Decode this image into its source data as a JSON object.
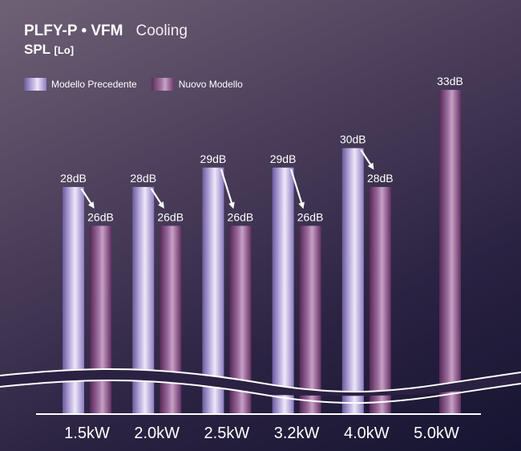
{
  "header": {
    "title": "PLFY-P • VFM",
    "mode": "Cooling",
    "subtitle": "SPL",
    "subtitle_suffix": "[Lo]"
  },
  "legend": {
    "items": [
      {
        "key": "prev",
        "label": "Modello Precedente"
      },
      {
        "key": "new",
        "label": "Nuovo Modello"
      }
    ]
  },
  "chart_data": {
    "type": "bar",
    "title": "PLFY-P • VFM",
    "categories": [
      "1.5kW",
      "2.0kW",
      "2.5kW",
      "3.2kW",
      "4.0kW",
      "5.0kW"
    ],
    "series": [
      {
        "name": "Modello Precedente",
        "values": [
          28,
          28,
          29,
          29,
          30,
          null
        ],
        "labels": [
          "28dB",
          "28dB",
          "29dB",
          "29dB",
          "30dB",
          ""
        ]
      },
      {
        "name": "Nuovo Modello",
        "values": [
          26,
          26,
          26,
          26,
          28,
          33
        ],
        "labels": [
          "26dB",
          "26dB",
          "26dB",
          "26dB",
          "28dB",
          "33dB"
        ]
      }
    ],
    "unit": "dB",
    "axis_break": true,
    "legend_position": "top-left",
    "grid": false
  }
}
